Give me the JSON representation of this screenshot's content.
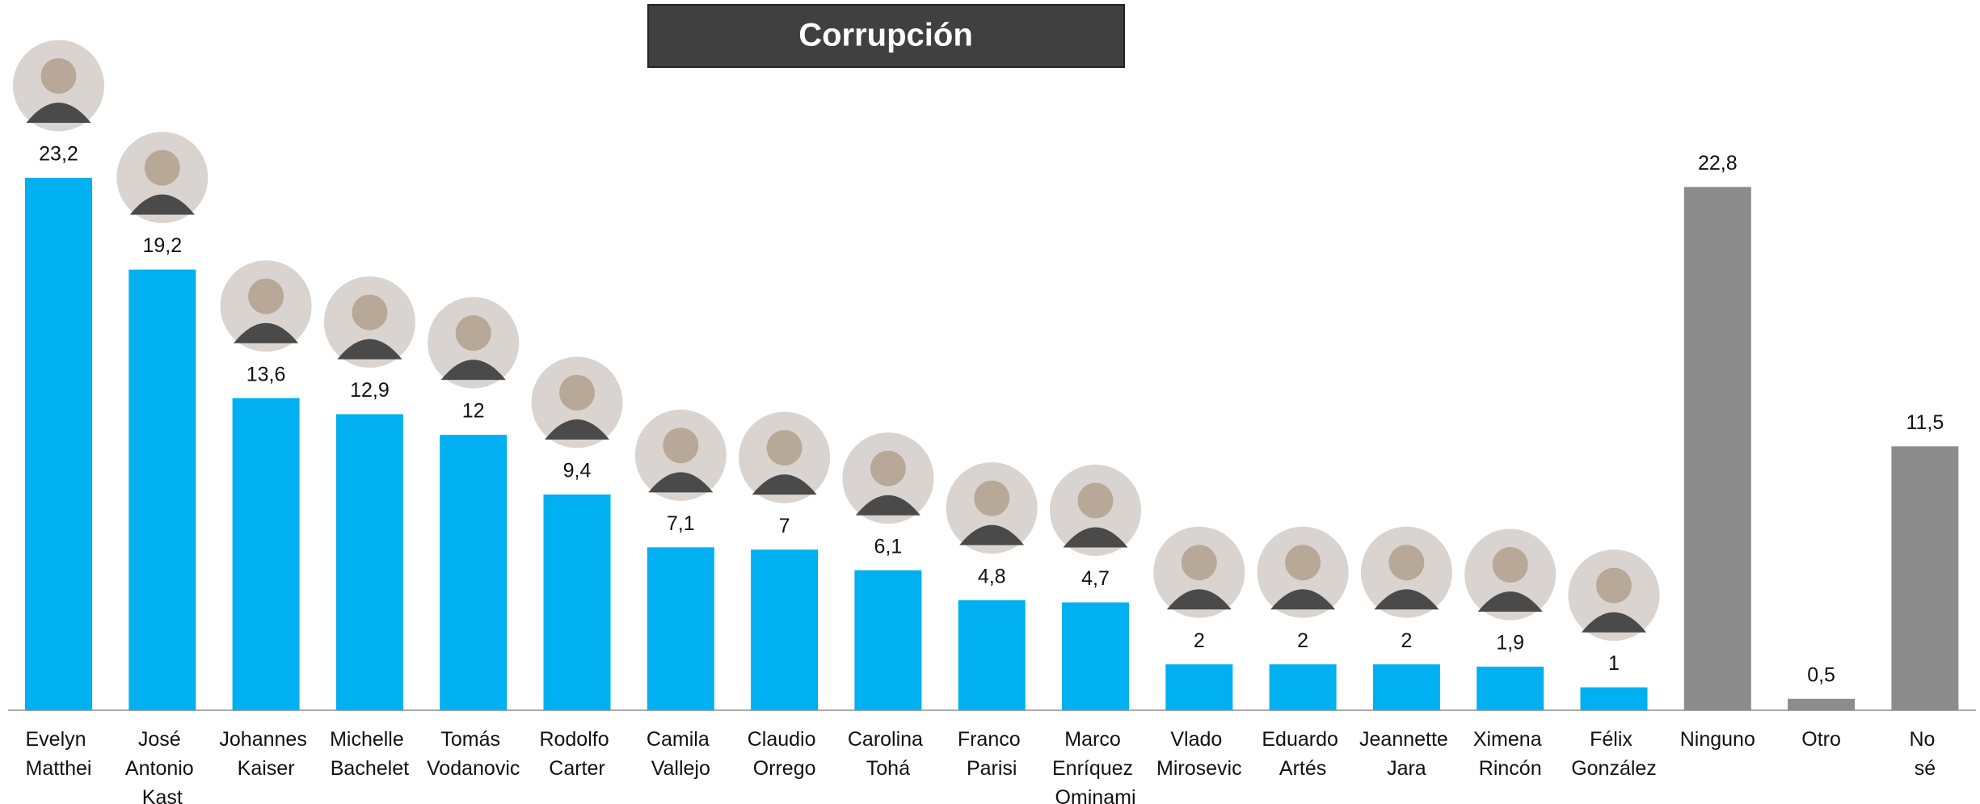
{
  "chart_data": {
    "type": "bar",
    "title": "Corrupción",
    "categories": [
      "Evelyn Matthei",
      "José Antonio Kast",
      "Johannes Kaiser",
      "Michelle Bachelet",
      "Tomás Vodanovic",
      "Rodolfo Carter",
      "Camila Vallejo",
      "Claudio Orrego",
      "Carolina Tohá",
      "Franco Parisi",
      "Marco Enríquez Ominami",
      "Vlado Mirosevic",
      "Eduardo Artés",
      "Jeannette Jara",
      "Ximena Rincón",
      "Félix González",
      "Ninguno",
      "Otro",
      "No sé"
    ],
    "values": [
      23.2,
      19.2,
      13.6,
      12.9,
      12,
      9.4,
      7.1,
      7,
      6.1,
      4.8,
      4.7,
      2,
      2,
      2,
      1.9,
      1,
      22.8,
      0.5,
      11.5
    ],
    "value_labels": [
      "23,2",
      "19,2",
      "13,6",
      "12,9",
      "12",
      "9,4",
      "7,1",
      "7",
      "6,1",
      "4,8",
      "4,7",
      "2",
      "2",
      "2",
      "1,9",
      "1",
      "22,8",
      "0,5",
      "11,5"
    ],
    "colors": [
      "#00b0f0",
      "#00b0f0",
      "#00b0f0",
      "#00b0f0",
      "#00b0f0",
      "#00b0f0",
      "#00b0f0",
      "#00b0f0",
      "#00b0f0",
      "#00b0f0",
      "#00b0f0",
      "#00b0f0",
      "#00b0f0",
      "#00b0f0",
      "#00b0f0",
      "#00b0f0",
      "#8c8c8c",
      "#8c8c8c",
      "#8c8c8c"
    ]
  }
}
